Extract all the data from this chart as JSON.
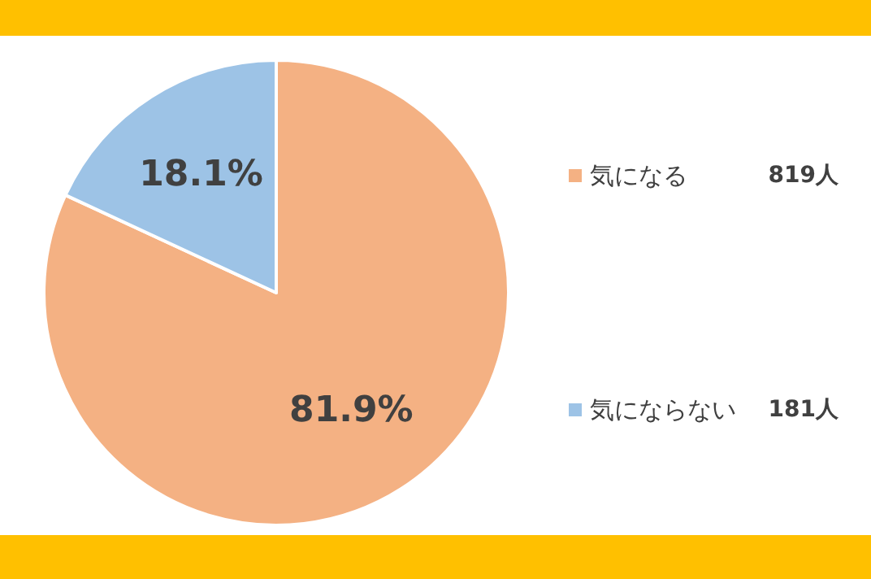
{
  "chart_data": {
    "type": "pie",
    "categories": [
      "気になる",
      "気にならない"
    ],
    "values": [
      81.9,
      18.1
    ],
    "colors": [
      "#f4b183",
      "#9dc3e6"
    ],
    "value_labels": [
      "81.9%",
      "18.1%"
    ],
    "legend": "right",
    "annotations": [
      "819人",
      "181人"
    ]
  }
}
